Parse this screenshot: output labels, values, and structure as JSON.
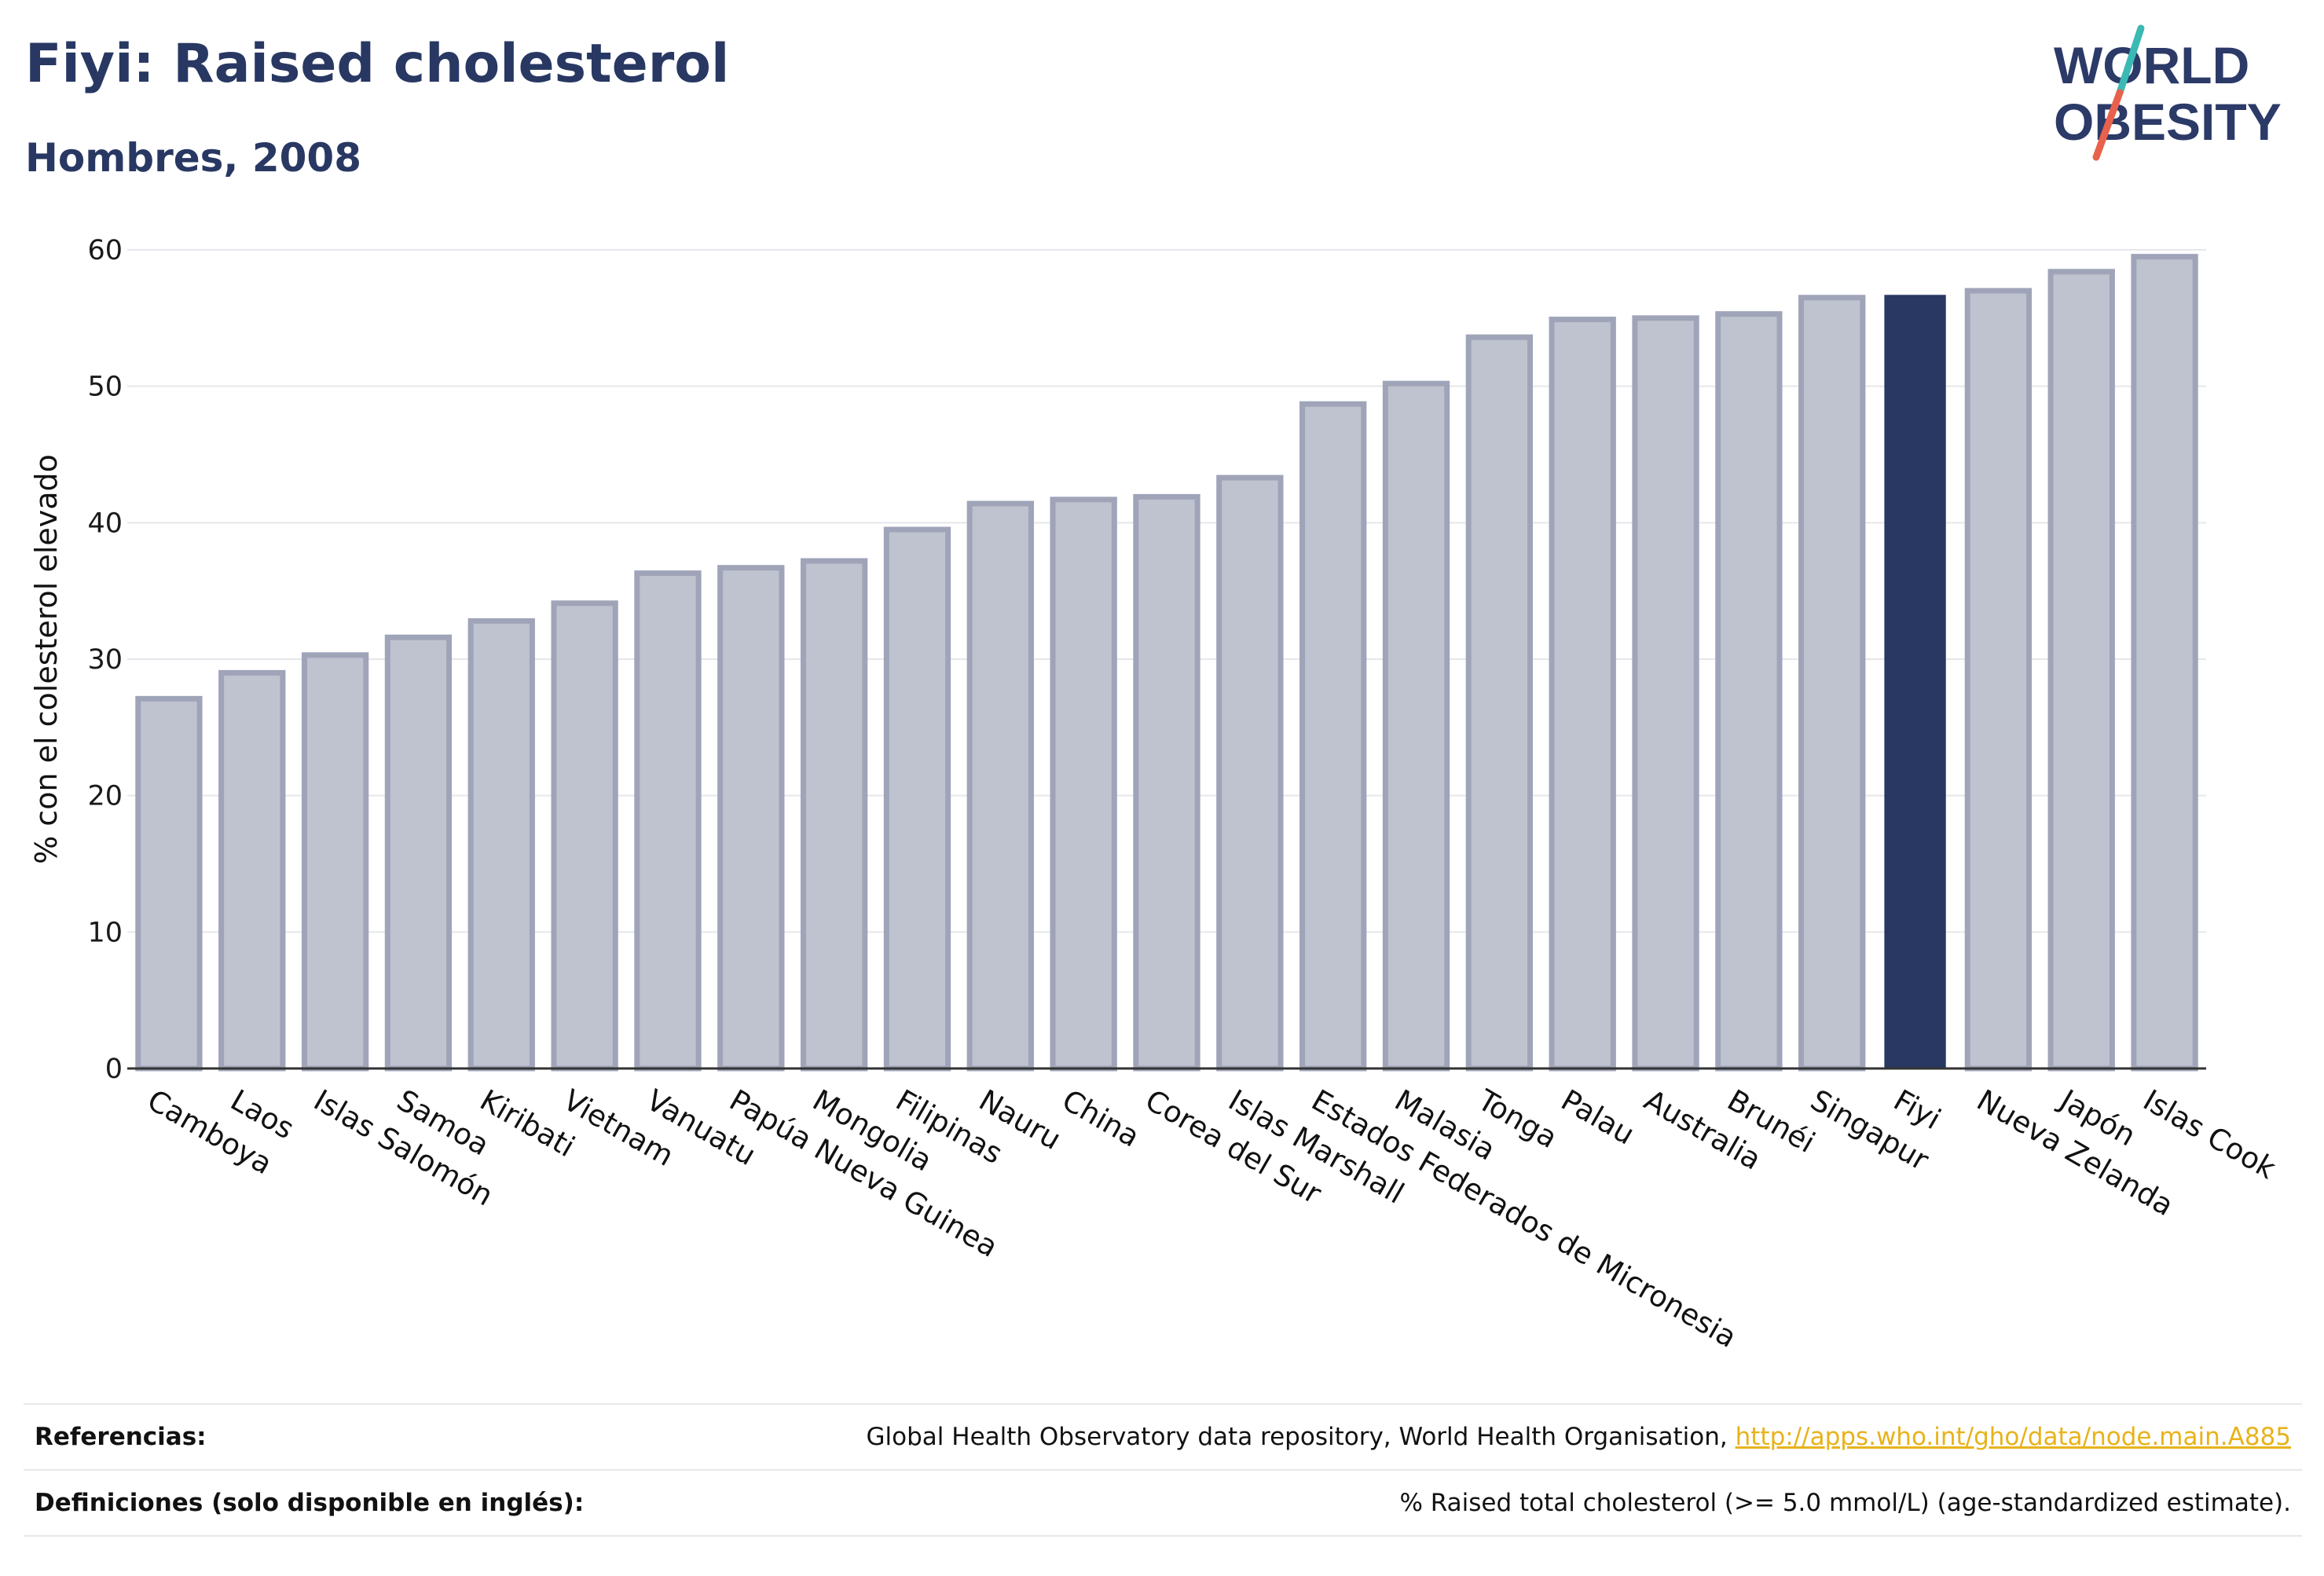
{
  "header": {
    "title": "Fiyi: Raised cholesterol",
    "subtitle": "Hombres, 2008"
  },
  "logo": {
    "line1": "WORLD",
    "line2": "OBESITY",
    "text_color": "#2b3a67",
    "slash_color_top": "#3bb9b4",
    "slash_color_bottom": "#e8614c"
  },
  "footer": {
    "references_label": "Referencias:",
    "references_text": "Global Health Observatory data repository, World Health Organisation, ",
    "references_link": "http://apps.who.int/gho/data/node.main.A885",
    "definitions_label": "Definiciones (solo disponible en inglés):",
    "definitions_text": "% Raised total cholesterol (>= 5.0 mmol/L) (age-standardized estimate)."
  },
  "colors": {
    "bar": "#bfc2cf",
    "bar_stroke": "#9fa4b8",
    "highlight": "#283863",
    "grid": "#e6e7ec",
    "axis": "#333333"
  },
  "chart_data": {
    "type": "bar",
    "title": "Fiyi: Raised cholesterol",
    "subtitle": "Hombres, 2008",
    "xlabel": "",
    "ylabel": "% con el colesterol elevado",
    "ylim": [
      0,
      60
    ],
    "yticks": [
      0,
      10,
      20,
      30,
      40,
      50,
      60
    ],
    "grid": true,
    "highlight": "Fiyi",
    "categories": [
      "Camboya",
      "Laos",
      "Islas Salomón",
      "Samoa",
      "Kiribati",
      "Vietnam",
      "Vanuatu",
      "Papúa Nueva Guinea",
      "Mongolia",
      "Filipinas",
      "Nauru",
      "China",
      "Corea del Sur",
      "Islas Marshall",
      "Estados Federados de Micronesia",
      "Malasia",
      "Tonga",
      "Palau",
      "Australia",
      "Brunéi",
      "Singapur",
      "Fiyi",
      "Nueva Zelanda",
      "Japón",
      "Islas Cook"
    ],
    "values": [
      27.1,
      29.0,
      30.3,
      31.6,
      32.8,
      34.1,
      36.3,
      36.7,
      37.2,
      39.5,
      41.4,
      41.7,
      41.9,
      43.3,
      48.7,
      50.2,
      53.6,
      54.9,
      55.0,
      55.3,
      56.5,
      56.7,
      57.0,
      58.4,
      59.5
    ]
  }
}
